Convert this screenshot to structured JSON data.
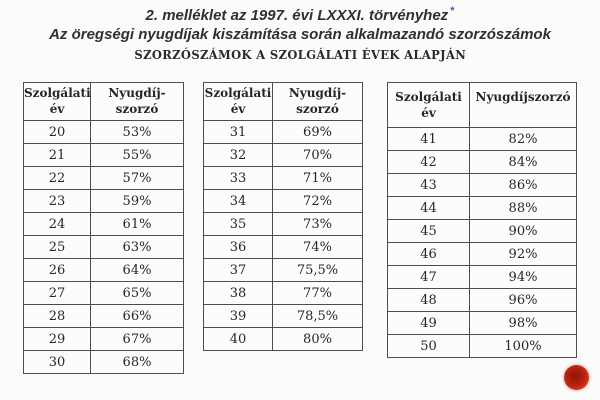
{
  "title": {
    "line1": "2. melléklet az 1997. évi LXXXI. törvényhez",
    "footnote_marker": "*",
    "line2": "Az öregségi nyugdíjak kiszámítása során alkalmazandó szorzószámok",
    "caps_heading": "SZORZÓSZÁMOK A SZOLGÁLATI ÉVEK ALAPJÁN"
  },
  "colors": {
    "background": "#fbfbfa",
    "text": "#2e3033",
    "table_border": "#4d4d4d",
    "footnote_marker_blue": "#3a62b0",
    "record_dot_red": "#b7200f"
  },
  "icons": {
    "record_dot": "filled-red-circle"
  },
  "tables": [
    {
      "col1_header": "Szolgálati\név",
      "col2_header": "Nyugdíj-\nszorzó",
      "rows": [
        {
          "year": "20",
          "rate": "53%"
        },
        {
          "year": "21",
          "rate": "55%"
        },
        {
          "year": "22",
          "rate": "57%"
        },
        {
          "year": "23",
          "rate": "59%"
        },
        {
          "year": "24",
          "rate": "61%"
        },
        {
          "year": "25",
          "rate": "63%"
        },
        {
          "year": "26",
          "rate": "64%"
        },
        {
          "year": "27",
          "rate": "65%"
        },
        {
          "year": "28",
          "rate": "66%"
        },
        {
          "year": "29",
          "rate": "67%"
        },
        {
          "year": "30",
          "rate": "68%"
        }
      ]
    },
    {
      "col1_header": "Szolgálati\név",
      "col2_header": "Nyugdíj-\nszorzó",
      "rows": [
        {
          "year": "31",
          "rate": "69%"
        },
        {
          "year": "32",
          "rate": "70%"
        },
        {
          "year": "33",
          "rate": "71%"
        },
        {
          "year": "34",
          "rate": "72%"
        },
        {
          "year": "35",
          "rate": "73%"
        },
        {
          "year": "36",
          "rate": "74%"
        },
        {
          "year": "37",
          "rate": "75,5%"
        },
        {
          "year": "38",
          "rate": "77%"
        },
        {
          "year": "39",
          "rate": "78,5%"
        },
        {
          "year": "40",
          "rate": "80%"
        }
      ]
    },
    {
      "col1_header": "Szolgálati év",
      "col2_header": "Nyugdíjszorzó",
      "rows": [
        {
          "year": "41",
          "rate": "82%"
        },
        {
          "year": "42",
          "rate": "84%"
        },
        {
          "year": "43",
          "rate": "86%"
        },
        {
          "year": "44",
          "rate": "88%"
        },
        {
          "year": "45",
          "rate": "90%"
        },
        {
          "year": "46",
          "rate": "92%"
        },
        {
          "year": "47",
          "rate": "94%"
        },
        {
          "year": "48",
          "rate": "96%"
        },
        {
          "year": "49",
          "rate": "98%"
        },
        {
          "year": "50",
          "rate": "100%"
        }
      ]
    }
  ]
}
